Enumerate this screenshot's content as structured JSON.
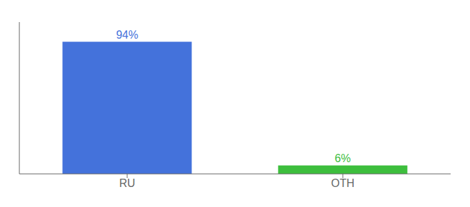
{
  "chart_data": {
    "type": "bar",
    "categories": [
      "RU",
      "OTH"
    ],
    "values": [
      94,
      6
    ],
    "value_labels": [
      "94%",
      "6%"
    ],
    "data_labels": true,
    "colors": [
      "#4472db",
      "#3dbe3d"
    ],
    "ylim": [
      0,
      108
    ],
    "grid": false,
    "tick_labels": "x"
  }
}
